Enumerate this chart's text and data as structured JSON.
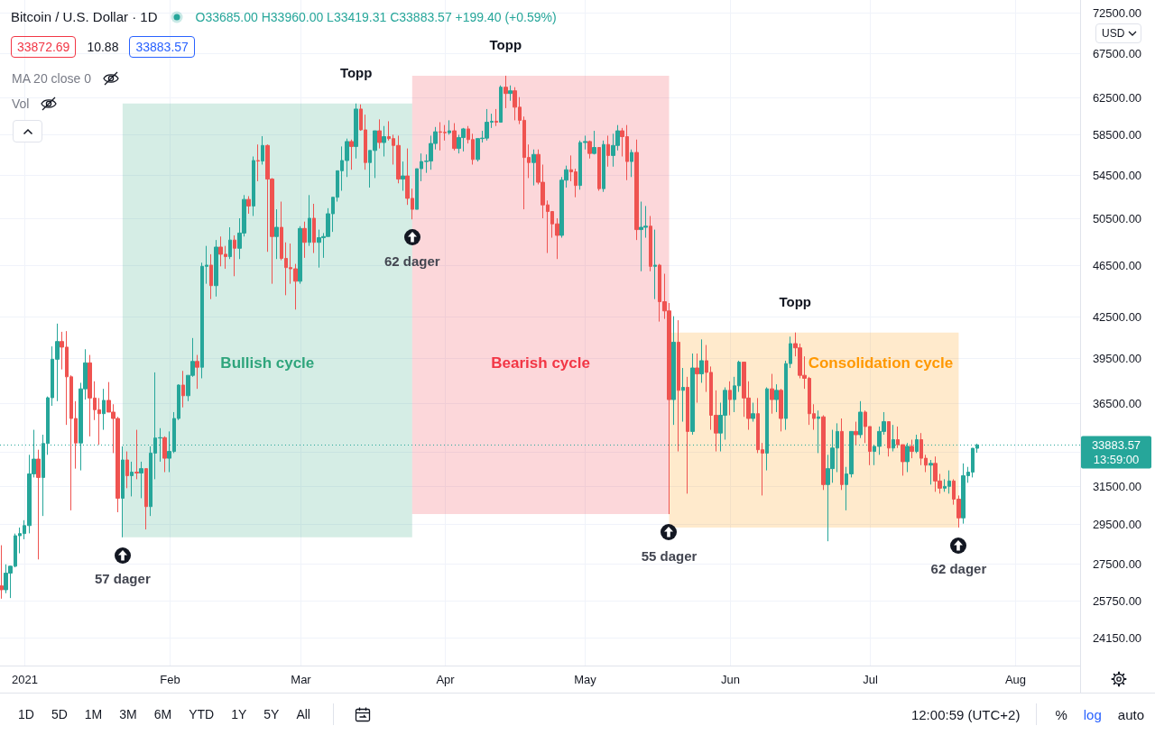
{
  "chart_data": {
    "type": "candlestick",
    "title": "Bitcoin / U.S. Dollar · 1D",
    "x": [
      "2020-12-27",
      "2020-12-28",
      "2020-12-29",
      "2020-12-30",
      "2020-12-31",
      "2021-01-01",
      "2021-01-02",
      "2021-01-03",
      "2021-01-04",
      "2021-01-05",
      "2021-01-06",
      "2021-01-07",
      "2021-01-08",
      "2021-01-09",
      "2021-01-10",
      "2021-01-11",
      "2021-01-12",
      "2021-01-13",
      "2021-01-14",
      "2021-01-15",
      "2021-01-16",
      "2021-01-17",
      "2021-01-18",
      "2021-01-19",
      "2021-01-20",
      "2021-01-21",
      "2021-01-22",
      "2021-01-23",
      "2021-01-24",
      "2021-01-25",
      "2021-01-26",
      "2021-01-27",
      "2021-01-28",
      "2021-01-29",
      "2021-01-30",
      "2021-01-31",
      "2021-02-01",
      "2021-02-02",
      "2021-02-03",
      "2021-02-04",
      "2021-02-05",
      "2021-02-06",
      "2021-02-07",
      "2021-02-08",
      "2021-02-09",
      "2021-02-10",
      "2021-02-11",
      "2021-02-12",
      "2021-02-13",
      "2021-02-14",
      "2021-02-15",
      "2021-02-16",
      "2021-02-17",
      "2021-02-18",
      "2021-02-19",
      "2021-02-20",
      "2021-02-21",
      "2021-02-22",
      "2021-02-23",
      "2021-02-24",
      "2021-02-25",
      "2021-02-26",
      "2021-02-27",
      "2021-02-28",
      "2021-03-01",
      "2021-03-02",
      "2021-03-03",
      "2021-03-04",
      "2021-03-05",
      "2021-03-06",
      "2021-03-07",
      "2021-03-08",
      "2021-03-09",
      "2021-03-10",
      "2021-03-11",
      "2021-03-12",
      "2021-03-13",
      "2021-03-14",
      "2021-03-15",
      "2021-03-16",
      "2021-03-17",
      "2021-03-18",
      "2021-03-19",
      "2021-03-20",
      "2021-03-21",
      "2021-03-22",
      "2021-03-23",
      "2021-03-24",
      "2021-03-25",
      "2021-03-26",
      "2021-03-27",
      "2021-03-28",
      "2021-03-29",
      "2021-03-30",
      "2021-03-31",
      "2021-04-01",
      "2021-04-02",
      "2021-04-03",
      "2021-04-04",
      "2021-04-05",
      "2021-04-06",
      "2021-04-07",
      "2021-04-08",
      "2021-04-09",
      "2021-04-10",
      "2021-04-11",
      "2021-04-12",
      "2021-04-13",
      "2021-04-14",
      "2021-04-15",
      "2021-04-16",
      "2021-04-17",
      "2021-04-18",
      "2021-04-19",
      "2021-04-20",
      "2021-04-21",
      "2021-04-22",
      "2021-04-23",
      "2021-04-24",
      "2021-04-25",
      "2021-04-26",
      "2021-04-27",
      "2021-04-28",
      "2021-04-29",
      "2021-04-30",
      "2021-05-01",
      "2021-05-02",
      "2021-05-03",
      "2021-05-04",
      "2021-05-05",
      "2021-05-06",
      "2021-05-07",
      "2021-05-08",
      "2021-05-09",
      "2021-05-10",
      "2021-05-11",
      "2021-05-12",
      "2021-05-13",
      "2021-05-14",
      "2021-05-15",
      "2021-05-16",
      "2021-05-17",
      "2021-05-18",
      "2021-05-19",
      "2021-05-20",
      "2021-05-21",
      "2021-05-22",
      "2021-05-23",
      "2021-05-24",
      "2021-05-25",
      "2021-05-26",
      "2021-05-27",
      "2021-05-28",
      "2021-05-29",
      "2021-05-30",
      "2021-05-31",
      "2021-06-01",
      "2021-06-02",
      "2021-06-03",
      "2021-06-04",
      "2021-06-05",
      "2021-06-06",
      "2021-06-07",
      "2021-06-08",
      "2021-06-09",
      "2021-06-10",
      "2021-06-11",
      "2021-06-12",
      "2021-06-13",
      "2021-06-14",
      "2021-06-15",
      "2021-06-16",
      "2021-06-17",
      "2021-06-18",
      "2021-06-19",
      "2021-06-20",
      "2021-06-21",
      "2021-06-22",
      "2021-06-23",
      "2021-06-24",
      "2021-06-25",
      "2021-06-26",
      "2021-06-27",
      "2021-06-28",
      "2021-06-29",
      "2021-06-30",
      "2021-07-01",
      "2021-07-02",
      "2021-07-03",
      "2021-07-04",
      "2021-07-05",
      "2021-07-06",
      "2021-07-07",
      "2021-07-08",
      "2021-07-09",
      "2021-07-10",
      "2021-07-11",
      "2021-07-12",
      "2021-07-13",
      "2021-07-14",
      "2021-07-15",
      "2021-07-16",
      "2021-07-17",
      "2021-07-18",
      "2021-07-19",
      "2021-07-20",
      "2021-07-21",
      "2021-07-22",
      "2021-07-23",
      "2021-07-24"
    ],
    "ohlc": [
      [
        26440,
        28400,
        25850,
        26260
      ],
      [
        26260,
        27460,
        26100,
        27040
      ],
      [
        27040,
        27390,
        25880,
        27370
      ],
      [
        27370,
        28990,
        27320,
        28880
      ],
      [
        28880,
        29300,
        28000,
        28990
      ],
      [
        28990,
        29680,
        28700,
        29400
      ],
      [
        29400,
        33300,
        29000,
        32200
      ],
      [
        32200,
        34800,
        32000,
        33050
      ],
      [
        33050,
        33600,
        27700,
        32000
      ],
      [
        32000,
        34500,
        29900,
        33970
      ],
      [
        33970,
        36900,
        33300,
        36820
      ],
      [
        36820,
        40300,
        36300,
        39400
      ],
      [
        39400,
        41950,
        36600,
        40650
      ],
      [
        40650,
        41350,
        38700,
        40250
      ],
      [
        40250,
        41400,
        35100,
        38200
      ],
      [
        38200,
        38300,
        30200,
        35500
      ],
      [
        35500,
        36600,
        32500,
        34000
      ],
      [
        34000,
        37800,
        32400,
        37400
      ],
      [
        37400,
        40100,
        36700,
        39150
      ],
      [
        39150,
        39700,
        34400,
        36800
      ],
      [
        36800,
        37900,
        35400,
        36050
      ],
      [
        36050,
        36800,
        33900,
        35800
      ],
      [
        35800,
        37400,
        34800,
        36650
      ],
      [
        36650,
        37850,
        35900,
        35900
      ],
      [
        35900,
        36400,
        33400,
        35500
      ],
      [
        35500,
        35600,
        30100,
        30850
      ],
      [
        30850,
        33800,
        28800,
        33000
      ],
      [
        33000,
        33500,
        31400,
        32100
      ],
      [
        32100,
        32900,
        30950,
        32300
      ],
      [
        32300,
        34800,
        31900,
        32250
      ],
      [
        32250,
        32900,
        30850,
        32500
      ],
      [
        32500,
        32500,
        29200,
        30400
      ],
      [
        30400,
        33800,
        29900,
        33400
      ],
      [
        33400,
        38500,
        31900,
        34300
      ],
      [
        34300,
        34900,
        32900,
        34320
      ],
      [
        34320,
        34400,
        32300,
        33100
      ],
      [
        33100,
        34700,
        32300,
        33500
      ],
      [
        33500,
        35900,
        33400,
        35500
      ],
      [
        35500,
        37700,
        35400,
        37650
      ],
      [
        37650,
        38600,
        36200,
        36950
      ],
      [
        36950,
        38300,
        36600,
        38300
      ],
      [
        38300,
        40900,
        38200,
        39250
      ],
      [
        39250,
        39700,
        37400,
        38850
      ],
      [
        38850,
        46700,
        38100,
        46400
      ],
      [
        46400,
        48100,
        45000,
        46500
      ],
      [
        46500,
        47400,
        43800,
        44850
      ],
      [
        44850,
        48600,
        44000,
        48000
      ],
      [
        48000,
        48900,
        46400,
        47400
      ],
      [
        47400,
        48100,
        46200,
        47200
      ],
      [
        47200,
        49700,
        47000,
        48600
      ],
      [
        48600,
        49000,
        45600,
        47900
      ],
      [
        47900,
        50500,
        47000,
        49200
      ],
      [
        49200,
        52600,
        48900,
        52200
      ],
      [
        52200,
        52500,
        50900,
        51600
      ],
      [
        51600,
        56300,
        50700,
        55900
      ],
      [
        55900,
        57500,
        53900,
        55850
      ],
      [
        55850,
        58350,
        55500,
        57400
      ],
      [
        57400,
        57500,
        47600,
        54100
      ],
      [
        54100,
        54200,
        45000,
        48900
      ],
      [
        48900,
        51300,
        47000,
        49700
      ],
      [
        49700,
        52000,
        46900,
        47050
      ],
      [
        47050,
        48400,
        44100,
        46300
      ],
      [
        46300,
        48300,
        45000,
        46200
      ],
      [
        46200,
        46600,
        43000,
        45200
      ],
      [
        45200,
        49800,
        45000,
        49600
      ],
      [
        49600,
        50200,
        47100,
        48400
      ],
      [
        48400,
        52600,
        48100,
        50500
      ],
      [
        50500,
        51800,
        47500,
        48400
      ],
      [
        48400,
        49500,
        46300,
        48800
      ],
      [
        48800,
        49200,
        47100,
        48900
      ],
      [
        48900,
        51400,
        48900,
        50900
      ],
      [
        50900,
        52400,
        49300,
        52400
      ],
      [
        52400,
        54900,
        52000,
        54900
      ],
      [
        54900,
        57300,
        53000,
        55900
      ],
      [
        55900,
        58100,
        54300,
        57800
      ],
      [
        57800,
        58000,
        55000,
        57300
      ],
      [
        57300,
        61800,
        56100,
        61200
      ],
      [
        61200,
        61700,
        58900,
        59000
      ],
      [
        59000,
        60600,
        55000,
        55700
      ],
      [
        55700,
        56900,
        53300,
        56900
      ],
      [
        56900,
        58900,
        54200,
        58900
      ],
      [
        58900,
        60100,
        57100,
        57700
      ],
      [
        57700,
        59400,
        56300,
        58300
      ],
      [
        58300,
        59900,
        57900,
        58100
      ],
      [
        58100,
        58500,
        55500,
        57400
      ],
      [
        57400,
        58400,
        53700,
        54100
      ],
      [
        54100,
        55800,
        53000,
        54400
      ],
      [
        54400,
        57100,
        51700,
        52300
      ],
      [
        52300,
        53200,
        50400,
        51300
      ],
      [
        51300,
        55100,
        51300,
        55100
      ],
      [
        55100,
        56600,
        53900,
        55800
      ],
      [
        55800,
        56500,
        54700,
        55850
      ],
      [
        55850,
        58400,
        55000,
        57600
      ],
      [
        57600,
        59300,
        57000,
        58800
      ],
      [
        58800,
        59800,
        56900,
        58750
      ],
      [
        58750,
        59500,
        57900,
        58700
      ],
      [
        58700,
        60000,
        58500,
        58900
      ],
      [
        58900,
        59700,
        56900,
        57100
      ],
      [
        57100,
        58500,
        56600,
        58200
      ],
      [
        58200,
        59200,
        56800,
        59100
      ],
      [
        59100,
        59400,
        57600,
        58000
      ],
      [
        58000,
        58600,
        55500,
        56000
      ],
      [
        56000,
        58100,
        55800,
        58100
      ],
      [
        58100,
        58900,
        57700,
        58150
      ],
      [
        58150,
        61200,
        57900,
        59800
      ],
      [
        59800,
        60700,
        59200,
        59900
      ],
      [
        59900,
        61200,
        59400,
        59800
      ],
      [
        59800,
        63800,
        59800,
        63600
      ],
      [
        63600,
        64900,
        61300,
        62900
      ],
      [
        62900,
        63800,
        62100,
        63200
      ],
      [
        63200,
        63600,
        60000,
        61400
      ],
      [
        61400,
        62500,
        59600,
        60000
      ],
      [
        60000,
        60400,
        51300,
        56200
      ],
      [
        56200,
        57500,
        54200,
        55700
      ],
      [
        55700,
        57000,
        53500,
        56500
      ],
      [
        56500,
        57000,
        53600,
        53800
      ],
      [
        53800,
        55500,
        50500,
        51700
      ],
      [
        51700,
        52100,
        47500,
        51100
      ],
      [
        51100,
        51100,
        48800,
        50000
      ],
      [
        50000,
        50500,
        47000,
        49000
      ],
      [
        49000,
        54300,
        48800,
        54000
      ],
      [
        54000,
        55400,
        53300,
        55000
      ],
      [
        55000,
        56400,
        53900,
        54800
      ],
      [
        54800,
        55100,
        52400,
        53500
      ],
      [
        53500,
        57900,
        53100,
        57700
      ],
      [
        57700,
        58400,
        57000,
        57800
      ],
      [
        57800,
        57900,
        56100,
        56600
      ],
      [
        56600,
        58900,
        56500,
        57200
      ],
      [
        57200,
        57200,
        53000,
        53200
      ],
      [
        53200,
        57900,
        52900,
        57500
      ],
      [
        57500,
        58400,
        55300,
        56400
      ],
      [
        56400,
        58600,
        55300,
        57400
      ],
      [
        57400,
        59500,
        56900,
        58900
      ],
      [
        58900,
        59200,
        56300,
        58300
      ],
      [
        58300,
        59500,
        54000,
        55800
      ],
      [
        55800,
        57000,
        54300,
        56700
      ],
      [
        56700,
        58000,
        48600,
        49500
      ],
      [
        49500,
        52000,
        46000,
        49700
      ],
      [
        49700,
        51600,
        48800,
        49800
      ],
      [
        49800,
        50700,
        46000,
        46400
      ],
      [
        46400,
        49500,
        43800,
        46500
      ],
      [
        46500,
        46600,
        42100,
        43600
      ],
      [
        43600,
        45800,
        42300,
        42900
      ],
      [
        42900,
        43500,
        30000,
        36700
      ],
      [
        36700,
        42500,
        35100,
        40600
      ],
      [
        40600,
        42200,
        33500,
        37300
      ],
      [
        37300,
        38800,
        35300,
        37500
      ],
      [
        37500,
        38200,
        31100,
        34700
      ],
      [
        34700,
        39800,
        34500,
        38800
      ],
      [
        38800,
        39800,
        36500,
        38400
      ],
      [
        38400,
        40800,
        37800,
        39300
      ],
      [
        39300,
        40400,
        37200,
        38500
      ],
      [
        38500,
        38900,
        34800,
        35700
      ],
      [
        35700,
        37300,
        33500,
        34600
      ],
      [
        34600,
        36500,
        33500,
        35700
      ],
      [
        35700,
        37500,
        34200,
        37300
      ],
      [
        37300,
        37900,
        35700,
        36700
      ],
      [
        36700,
        38200,
        35900,
        37600
      ],
      [
        37600,
        39300,
        37200,
        39200
      ],
      [
        39200,
        39200,
        35600,
        36800
      ],
      [
        36800,
        37900,
        34800,
        35500
      ],
      [
        35500,
        36500,
        35300,
        35800
      ],
      [
        35800,
        36800,
        33400,
        33600
      ],
      [
        33600,
        34000,
        31000,
        33400
      ],
      [
        33400,
        37500,
        32400,
        37400
      ],
      [
        37400,
        38400,
        35800,
        36700
      ],
      [
        36700,
        37700,
        35900,
        37300
      ],
      [
        37300,
        37400,
        34700,
        35500
      ],
      [
        35500,
        39300,
        34800,
        39100
      ],
      [
        39100,
        41000,
        38800,
        40500
      ],
      [
        40500,
        41300,
        39600,
        40200
      ],
      [
        40200,
        40500,
        38100,
        38300
      ],
      [
        38300,
        39600,
        37400,
        38100
      ],
      [
        38100,
        38200,
        35100,
        35800
      ],
      [
        35800,
        36400,
        34800,
        35500
      ],
      [
        35500,
        36000,
        33400,
        35600
      ],
      [
        35600,
        35700,
        31300,
        31600
      ],
      [
        31600,
        33300,
        28600,
        32500
      ],
      [
        32500,
        34800,
        31700,
        33700
      ],
      [
        33700,
        35200,
        32300,
        34700
      ],
      [
        34700,
        35500,
        31300,
        31600
      ],
      [
        31600,
        32600,
        30200,
        32200
      ],
      [
        32200,
        34700,
        32000,
        34700
      ],
      [
        34700,
        35300,
        33900,
        34500
      ],
      [
        34500,
        36600,
        34300,
        35900
      ],
      [
        35900,
        36000,
        34000,
        35000
      ],
      [
        35000,
        35000,
        32700,
        33500
      ],
      [
        33500,
        33900,
        32700,
        33800
      ],
      [
        33800,
        35000,
        33300,
        34700
      ],
      [
        34700,
        35900,
        34500,
        35300
      ],
      [
        35300,
        35300,
        33200,
        33700
      ],
      [
        33700,
        35100,
        33500,
        34200
      ],
      [
        34200,
        35000,
        33700,
        33900
      ],
      [
        33900,
        33900,
        32100,
        32900
      ],
      [
        32900,
        34000,
        32300,
        33800
      ],
      [
        33800,
        34200,
        33100,
        33500
      ],
      [
        33500,
        34500,
        33400,
        34200
      ],
      [
        34200,
        34600,
        32700,
        33100
      ],
      [
        33100,
        33300,
        32300,
        32700
      ],
      [
        32700,
        33000,
        31600,
        32800
      ],
      [
        32800,
        33200,
        31200,
        31800
      ],
      [
        31800,
        32200,
        31100,
        31400
      ],
      [
        31400,
        31900,
        31200,
        31500
      ],
      [
        31500,
        32400,
        31100,
        31800
      ],
      [
        31800,
        31900,
        30500,
        30800
      ],
      [
        30800,
        31000,
        29300,
        29800
      ],
      [
        29800,
        32800,
        29500,
        32100
      ],
      [
        32100,
        32600,
        31700,
        32300
      ],
      [
        32300,
        33700,
        32000,
        33685
      ],
      [
        33685,
        33960,
        33419.31,
        33883.57
      ]
    ],
    "colors": [
      "#ef5350",
      "#26a69a",
      "#26a69a",
      "#26a69a",
      "#26a69a",
      "#26a69a",
      "#26a69a",
      "#26a69a",
      "#ef5350",
      "#26a69a",
      "#26a69a",
      "#26a69a",
      "#26a69a",
      "#ef5350",
      "#ef5350",
      "#ef5350",
      "#ef5350",
      "#26a69a",
      "#26a69a",
      "#ef5350",
      "#ef5350",
      "#ef5350",
      "#26a69a",
      "#ef5350",
      "#ef5350",
      "#ef5350",
      "#26a69a",
      "#ef5350",
      "#26a69a",
      "#ef5350",
      "#26a69a",
      "#ef5350",
      "#26a69a",
      "#26a69a",
      "#26a69a",
      "#ef5350",
      "#26a69a",
      "#26a69a",
      "#26a69a",
      "#ef5350",
      "#26a69a",
      "#26a69a",
      "#ef5350",
      "#26a69a",
      "#26a69a",
      "#ef5350",
      "#26a69a",
      "#ef5350",
      "#ef5350",
      "#26a69a",
      "#ef5350",
      "#26a69a",
      "#26a69a",
      "#ef5350",
      "#26a69a",
      "#ef5350",
      "#26a69a",
      "#ef5350",
      "#ef5350",
      "#26a69a",
      "#ef5350",
      "#ef5350",
      "#ef5350",
      "#ef5350",
      "#26a69a",
      "#ef5350",
      "#26a69a",
      "#ef5350",
      "#26a69a",
      "#26a69a",
      "#26a69a",
      "#26a69a",
      "#26a69a",
      "#26a69a",
      "#26a69a",
      "#ef5350",
      "#26a69a",
      "#ef5350",
      "#ef5350",
      "#26a69a",
      "#26a69a",
      "#ef5350",
      "#26a69a",
      "#ef5350",
      "#ef5350",
      "#ef5350",
      "#26a69a",
      "#ef5350",
      "#ef5350",
      "#26a69a",
      "#26a69a",
      "#26a69a",
      "#26a69a",
      "#26a69a",
      "#ef5350",
      "#ef5350",
      "#26a69a",
      "#ef5350",
      "#26a69a",
      "#26a69a",
      "#ef5350",
      "#ef5350",
      "#26a69a",
      "#26a69a",
      "#26a69a",
      "#26a69a",
      "#ef5350",
      "#26a69a",
      "#ef5350",
      "#26a69a",
      "#ef5350",
      "#ef5350",
      "#ef5350",
      "#ef5350",
      "#26a69a",
      "#ef5350",
      "#ef5350",
      "#ef5350",
      "#ef5350",
      "#ef5350",
      "#26a69a",
      "#26a69a",
      "#ef5350",
      "#ef5350",
      "#26a69a",
      "#26a69a",
      "#ef5350",
      "#26a69a",
      "#ef5350",
      "#26a69a",
      "#ef5350",
      "#26a69a",
      "#26a69a",
      "#ef5350",
      "#ef5350",
      "#26a69a",
      "#ef5350",
      "#26a69a",
      "#26a69a",
      "#ef5350",
      "#26a69a",
      "#ef5350",
      "#ef5350",
      "#ef5350",
      "#26a69a",
      "#ef5350",
      "#26a69a",
      "#ef5350",
      "#26a69a",
      "#ef5350",
      "#26a69a",
      "#ef5350",
      "#ef5350",
      "#ef5350",
      "#26a69a",
      "#26a69a",
      "#ef5350",
      "#26a69a",
      "#26a69a",
      "#ef5350",
      "#ef5350",
      "#26a69a",
      "#ef5350",
      "#ef5350",
      "#26a69a",
      "#ef5350",
      "#26a69a",
      "#ef5350",
      "#26a69a",
      "#26a69a",
      "#ef5350",
      "#ef5350",
      "#ef5350",
      "#ef5350",
      "#ef5350",
      "#26a69a",
      "#ef5350",
      "#26a69a",
      "#26a69a",
      "#26a69a",
      "#ef5350",
      "#26a69a",
      "#26a69a",
      "#ef5350",
      "#26a69a",
      "#ef5350",
      "#ef5350",
      "#26a69a",
      "#26a69a",
      "#26a69a",
      "#ef5350",
      "#26a69a",
      "#ef5350",
      "#ef5350",
      "#26a69a",
      "#ef5350",
      "#26a69a",
      "#ef5350",
      "#ef5350",
      "#26a69a",
      "#ef5350",
      "#ef5350",
      "#26a69a",
      "#26a69a",
      "#ef5350",
      "#ef5350",
      "#26a69a",
      "#26a69a",
      "#26a69a",
      "#26a69a"
    ],
    "xlim": [
      "2020-12-26T18:00",
      "2021-08-15"
    ],
    "xticks": [
      {
        "value": "2021-01-01",
        "label": "2021"
      },
      {
        "value": "2021-02-01",
        "label": "Feb"
      },
      {
        "value": "2021-03-01",
        "label": "Mar"
      },
      {
        "value": "2021-04-01",
        "label": "Apr"
      },
      {
        "value": "2021-05-01",
        "label": "May"
      },
      {
        "value": "2021-06-01",
        "label": "Jun"
      },
      {
        "value": "2021-07-01",
        "label": "Jul"
      },
      {
        "value": "2021-08-01",
        "label": "Aug"
      }
    ],
    "ylim": [
      22980,
      74150
    ],
    "yticks": [
      {
        "value": 24150,
        "label": "24150.00"
      },
      {
        "value": 25750,
        "label": "25750.00"
      },
      {
        "value": 27500,
        "label": "27500.00"
      },
      {
        "value": 29500,
        "label": "29500.00"
      },
      {
        "value": 31500,
        "label": "31500.00"
      },
      {
        "value": 33500,
        "label": null
      },
      {
        "value": 36500,
        "label": "36500.00"
      },
      {
        "value": 39500,
        "label": "39500.00"
      },
      {
        "value": 42500,
        "label": "42500.00"
      },
      {
        "value": 46500,
        "label": "46500.00"
      },
      {
        "value": 50500,
        "label": "50500.00"
      },
      {
        "value": 54500,
        "label": "54500.00"
      },
      {
        "value": 58500,
        "label": "58500.00"
      },
      {
        "value": 62500,
        "label": "62500.00"
      },
      {
        "value": 67500,
        "label": "67500.00"
      },
      {
        "value": 72500,
        "label": "72500.00"
      }
    ],
    "log": true,
    "grid": true,
    "ref_lines": [
      {
        "axis": "y",
        "value": 33883.57,
        "label": "33883.57",
        "color": "#26a69a",
        "line_style": "dotted"
      }
    ],
    "bands": [
      {
        "axis": "x",
        "from": "2021-01-22",
        "to": "2021-03-25",
        "label": "Bullish cycle",
        "color": "#2fa57c"
      },
      {
        "axis": "x",
        "from": "2021-03-25",
        "to": "2021-05-19",
        "label": "Bearish cycle",
        "color": "#f23645"
      },
      {
        "axis": "x",
        "from": "2021-05-19",
        "to": "2021-07-20",
        "label": "Consolidation cycle",
        "color": "#ff9800"
      }
    ],
    "annotations": [
      "O33685.00 H33960.00 L33419.31 C33883.57 +199.40 (+0.59%)",
      "33872.69",
      "10.88",
      "33883.57",
      "MA 20 close 0",
      "Vol",
      "13:59:00",
      "1D",
      "5D",
      "1M",
      "3M",
      "6M",
      "YTD",
      "1Y",
      "5Y",
      "All",
      "12:00:59 (UTC+2)",
      "%",
      "log",
      "auto",
      "USD",
      {
        "text": "Topp",
        "x": "2021-03-13",
        "y": 61800
      },
      {
        "text": "Topp",
        "x": "2021-04-14",
        "y": 64900
      },
      {
        "text": "Topp",
        "x": "2021-06-15",
        "y": 41300
      },
      {
        "text": "57 dager",
        "x": "2021-01-22",
        "y": 28800
      },
      {
        "text": "62 dager",
        "x": "2021-03-25",
        "y": 50400
      },
      {
        "text": "55 dager",
        "x": "2021-05-19",
        "y": 30000
      },
      {
        "text": "62 dager",
        "x": "2021-07-20",
        "y": 29300
      }
    ]
  }
}
